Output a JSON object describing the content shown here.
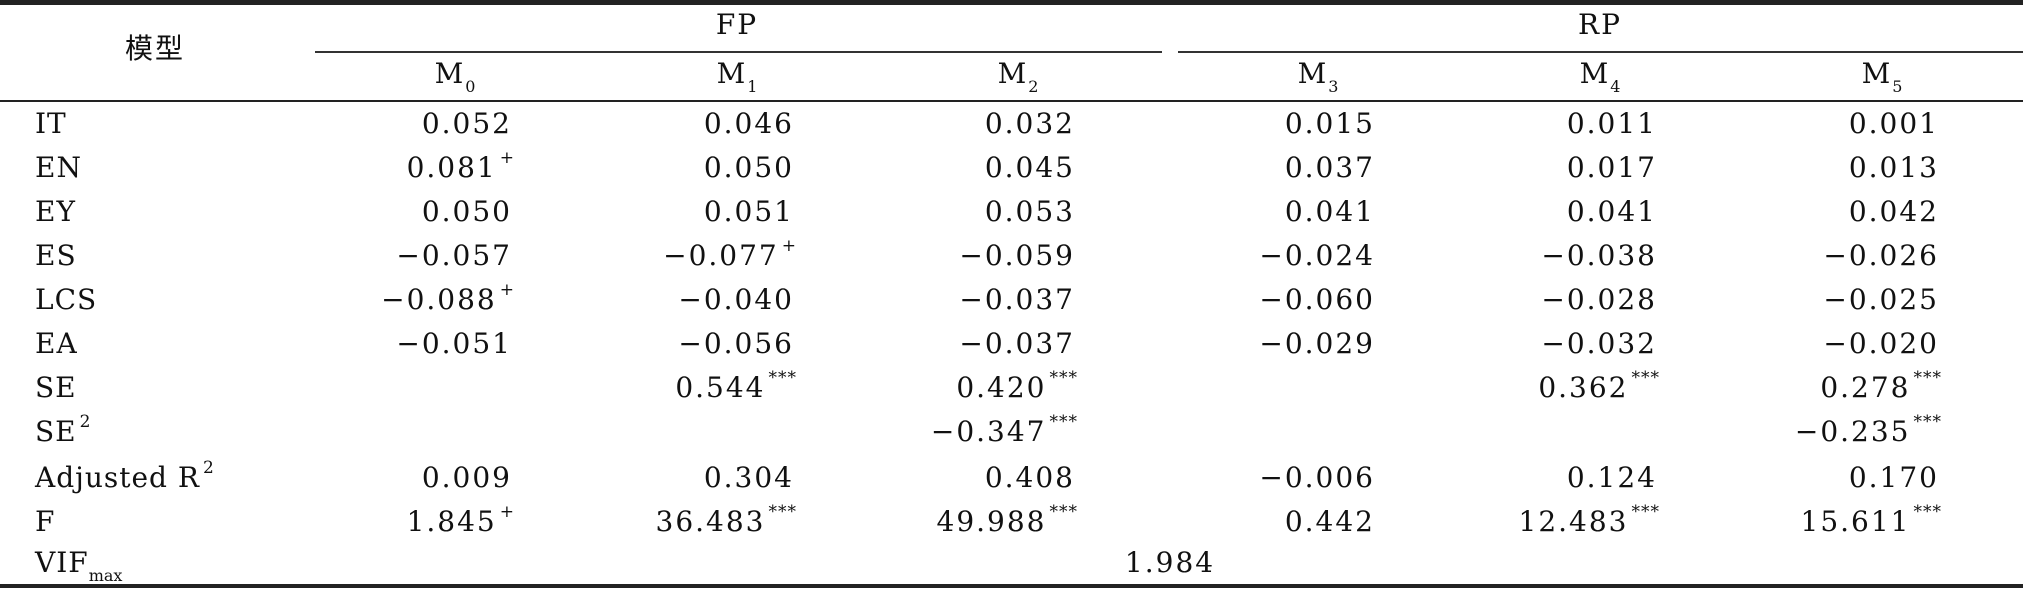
{
  "header": {
    "model_label": "模型",
    "group_fp": "FP",
    "group_rp": "RP",
    "models": [
      {
        "base": "M",
        "sub": "0"
      },
      {
        "base": "M",
        "sub": "1"
      },
      {
        "base": "M",
        "sub": "2"
      },
      {
        "base": "M",
        "sub": "3"
      },
      {
        "base": "M",
        "sub": "4"
      },
      {
        "base": "M",
        "sub": "5"
      }
    ]
  },
  "rows": [
    {
      "label": "IT",
      "cells": [
        {
          "v": "0.052",
          "s": ""
        },
        {
          "v": "0.046",
          "s": ""
        },
        {
          "v": "0.032",
          "s": ""
        },
        {
          "v": "0.015",
          "s": ""
        },
        {
          "v": "0.011",
          "s": ""
        },
        {
          "v": "0.001",
          "s": ""
        }
      ]
    },
    {
      "label": "EN",
      "cells": [
        {
          "v": "0.081",
          "s": "+"
        },
        {
          "v": "0.050",
          "s": ""
        },
        {
          "v": "0.045",
          "s": ""
        },
        {
          "v": "0.037",
          "s": ""
        },
        {
          "v": "0.017",
          "s": ""
        },
        {
          "v": "0.013",
          "s": ""
        }
      ]
    },
    {
      "label": "EY",
      "cells": [
        {
          "v": "0.050",
          "s": ""
        },
        {
          "v": "0.051",
          "s": ""
        },
        {
          "v": "0.053",
          "s": ""
        },
        {
          "v": "0.041",
          "s": ""
        },
        {
          "v": "0.041",
          "s": ""
        },
        {
          "v": "0.042",
          "s": ""
        }
      ]
    },
    {
      "label": "ES",
      "cells": [
        {
          "v": "−0.057",
          "s": ""
        },
        {
          "v": "−0.077",
          "s": "+"
        },
        {
          "v": "−0.059",
          "s": ""
        },
        {
          "v": "−0.024",
          "s": ""
        },
        {
          "v": "−0.038",
          "s": ""
        },
        {
          "v": "−0.026",
          "s": ""
        }
      ]
    },
    {
      "label": "LCS",
      "cells": [
        {
          "v": "−0.088",
          "s": "+"
        },
        {
          "v": "−0.040",
          "s": ""
        },
        {
          "v": "−0.037",
          "s": ""
        },
        {
          "v": "−0.060",
          "s": ""
        },
        {
          "v": "−0.028",
          "s": ""
        },
        {
          "v": "−0.025",
          "s": ""
        }
      ]
    },
    {
      "label": "EA",
      "cells": [
        {
          "v": "−0.051",
          "s": ""
        },
        {
          "v": "−0.056",
          "s": ""
        },
        {
          "v": "−0.037",
          "s": ""
        },
        {
          "v": "−0.029",
          "s": ""
        },
        {
          "v": "−0.032",
          "s": ""
        },
        {
          "v": "−0.020",
          "s": ""
        }
      ]
    },
    {
      "label": "SE",
      "cells": [
        {
          "v": "",
          "s": ""
        },
        {
          "v": "0.544",
          "s": "***"
        },
        {
          "v": "0.420",
          "s": "***"
        },
        {
          "v": "",
          "s": ""
        },
        {
          "v": "0.362",
          "s": "***"
        },
        {
          "v": "0.278",
          "s": "***"
        }
      ]
    },
    {
      "label": "SE",
      "label_sup": "2",
      "cells": [
        {
          "v": "",
          "s": ""
        },
        {
          "v": "",
          "s": ""
        },
        {
          "v": "−0.347",
          "s": "***"
        },
        {
          "v": "",
          "s": ""
        },
        {
          "v": "",
          "s": ""
        },
        {
          "v": "−0.235",
          "s": "***"
        }
      ]
    },
    {
      "label": "Adjusted R",
      "label_sup": "2",
      "cells": [
        {
          "v": "0.009",
          "s": ""
        },
        {
          "v": "0.304",
          "s": ""
        },
        {
          "v": "0.408",
          "s": ""
        },
        {
          "v": "−0.006",
          "s": ""
        },
        {
          "v": "0.124",
          "s": ""
        },
        {
          "v": "0.170",
          "s": ""
        }
      ]
    },
    {
      "label": "F",
      "cells": [
        {
          "v": "1.845",
          "s": "+"
        },
        {
          "v": "36.483",
          "s": "***"
        },
        {
          "v": "49.988",
          "s": "***"
        },
        {
          "v": "0.442",
          "s": ""
        },
        {
          "v": "12.483",
          "s": "***"
        },
        {
          "v": "15.611",
          "s": "***"
        }
      ]
    }
  ],
  "vif": {
    "label": "VIF",
    "label_sub": "max",
    "value": "1.984"
  }
}
